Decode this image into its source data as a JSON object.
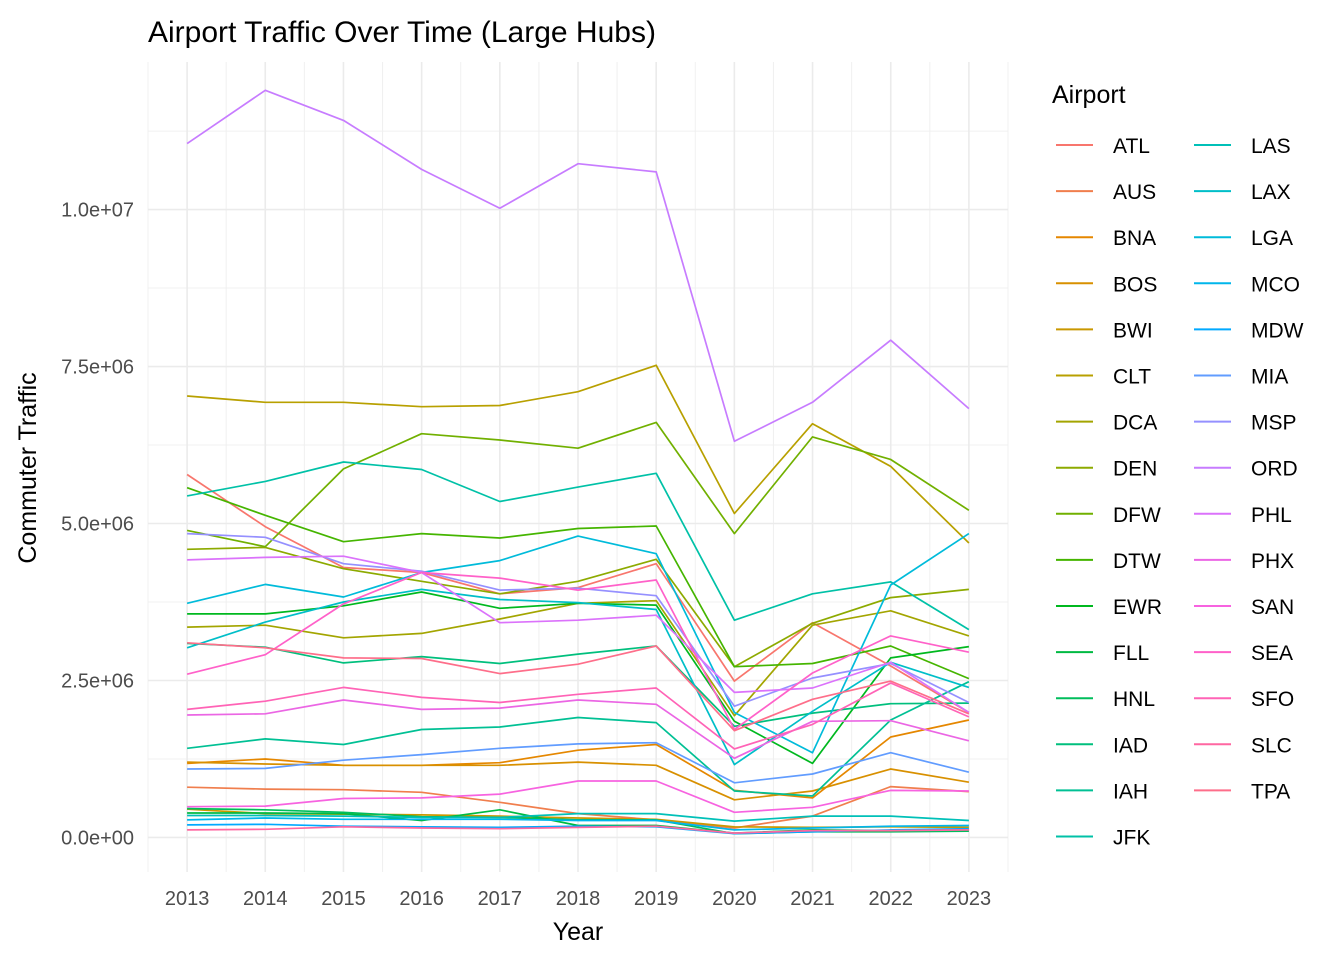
{
  "chart_data": {
    "type": "line",
    "title": "Airport Traffic Over Time (Large Hubs)",
    "xlabel": "Year",
    "ylabel": "Commuter Traffic",
    "x": [
      2013,
      2014,
      2015,
      2016,
      2017,
      2018,
      2019,
      2020,
      2021,
      2022,
      2023
    ],
    "x_tick_labels": [
      "2013",
      "2014",
      "2015",
      "2016",
      "2017",
      "2018",
      "2019",
      "2020",
      "2021",
      "2022",
      "2023"
    ],
    "y_ticks": [
      0,
      2500000,
      5000000,
      7500000,
      10000000
    ],
    "y_tick_labels": [
      "0.0e+00",
      "2.5e+06",
      "5.0e+06",
      "7.5e+06",
      "1.0e+07"
    ],
    "xlim": [
      2012.5,
      2023.5
    ],
    "ylim": [
      -550000,
      12350000
    ],
    "grid": true,
    "legend": {
      "title": "Airport",
      "placement": "right",
      "columns": 2
    },
    "series": [
      {
        "name": "ATL",
        "color": "#F8766D",
        "values": [
          5780000,
          4950000,
          4300000,
          4220000,
          3880000,
          3980000,
          4360000,
          2490000,
          3420000,
          2730000,
          1990000
        ]
      },
      {
        "name": "AUS",
        "color": "#F07E4D",
        "values": [
          800000,
          770000,
          760000,
          720000,
          560000,
          380000,
          280000,
          150000,
          340000,
          810000,
          730000
        ]
      },
      {
        "name": "BNA",
        "color": "#E58700",
        "values": [
          1180000,
          1250000,
          1150000,
          1150000,
          1190000,
          1390000,
          1480000,
          750000,
          630000,
          1600000,
          1870000
        ]
      },
      {
        "name": "BOS",
        "color": "#D89000",
        "values": [
          1200000,
          1170000,
          1150000,
          1150000,
          1150000,
          1200000,
          1150000,
          600000,
          740000,
          1090000,
          880000
        ]
      },
      {
        "name": "BWI",
        "color": "#C99800",
        "values": [
          450000,
          380000,
          370000,
          360000,
          340000,
          310000,
          290000,
          170000,
          160000,
          170000,
          160000
        ]
      },
      {
        "name": "CLT",
        "color": "#B8A000",
        "values": [
          7030000,
          6930000,
          6930000,
          6860000,
          6880000,
          7100000,
          7520000,
          5160000,
          6590000,
          5910000,
          4690000
        ]
      },
      {
        "name": "DCA",
        "color": "#A3A500",
        "values": [
          3350000,
          3380000,
          3180000,
          3250000,
          3480000,
          3730000,
          3770000,
          1940000,
          3380000,
          3610000,
          3210000
        ]
      },
      {
        "name": "DEN",
        "color": "#8DAA00",
        "values": [
          4590000,
          4620000,
          4280000,
          4080000,
          3880000,
          4080000,
          4430000,
          2720000,
          3410000,
          3820000,
          3950000
        ]
      },
      {
        "name": "DFW",
        "color": "#71B000",
        "values": [
          4890000,
          4630000,
          5870000,
          6430000,
          6330000,
          6200000,
          6610000,
          4840000,
          6380000,
          6020000,
          5210000
        ]
      },
      {
        "name": "DTW",
        "color": "#45B500",
        "values": [
          5570000,
          5130000,
          4710000,
          4840000,
          4770000,
          4920000,
          4960000,
          2720000,
          2770000,
          3050000,
          2530000
        ]
      },
      {
        "name": "EWR",
        "color": "#00B81F",
        "values": [
          3560000,
          3560000,
          3690000,
          3910000,
          3650000,
          3730000,
          3700000,
          1850000,
          1180000,
          2860000,
          3040000
        ]
      },
      {
        "name": "FLL",
        "color": "#00BA42",
        "values": [
          390000,
          390000,
          380000,
          270000,
          440000,
          190000,
          190000,
          70000,
          120000,
          110000,
          120000
        ]
      },
      {
        "name": "HNL",
        "color": "#00BD5C",
        "values": [
          460000,
          440000,
          400000,
          330000,
          320000,
          280000,
          280000,
          60000,
          90000,
          90000,
          100000
        ]
      },
      {
        "name": "IAD",
        "color": "#00BF7D",
        "values": [
          3090000,
          3030000,
          2780000,
          2880000,
          2770000,
          2920000,
          3050000,
          1770000,
          1980000,
          2130000,
          2140000
        ]
      },
      {
        "name": "IAH",
        "color": "#00C094",
        "values": [
          1420000,
          1570000,
          1480000,
          1720000,
          1760000,
          1910000,
          1830000,
          740000,
          660000,
          1870000,
          2480000
        ]
      },
      {
        "name": "JFK",
        "color": "#00C1A7",
        "values": [
          5440000,
          5670000,
          5980000,
          5860000,
          5350000,
          5580000,
          5800000,
          3460000,
          3880000,
          4070000,
          3310000
        ]
      },
      {
        "name": "LAS",
        "color": "#00C0B8",
        "values": [
          350000,
          350000,
          340000,
          320000,
          320000,
          380000,
          380000,
          260000,
          340000,
          340000,
          270000
        ]
      },
      {
        "name": "LAX",
        "color": "#00BEC8",
        "values": [
          3020000,
          3430000,
          3750000,
          3950000,
          3790000,
          3740000,
          3630000,
          1160000,
          2010000,
          2790000,
          2390000
        ]
      },
      {
        "name": "LGA",
        "color": "#00BBDA",
        "values": [
          3730000,
          4030000,
          3830000,
          4220000,
          4410000,
          4800000,
          4520000,
          1990000,
          1350000,
          4020000,
          4840000
        ]
      },
      {
        "name": "MCO",
        "color": "#00B6EB",
        "values": [
          280000,
          310000,
          290000,
          290000,
          290000,
          270000,
          270000,
          120000,
          150000,
          180000,
          190000
        ]
      },
      {
        "name": "MDW",
        "color": "#00A9FF",
        "values": [
          200000,
          210000,
          180000,
          170000,
          160000,
          180000,
          170000,
          60000,
          90000,
          120000,
          140000
        ]
      },
      {
        "name": "MIA",
        "color": "#619CFF",
        "values": [
          1090000,
          1100000,
          1230000,
          1320000,
          1420000,
          1490000,
          1510000,
          870000,
          1010000,
          1350000,
          1040000
        ]
      },
      {
        "name": "MSP",
        "color": "#9590FF",
        "values": [
          4840000,
          4780000,
          4360000,
          4240000,
          3940000,
          3970000,
          3850000,
          2090000,
          2540000,
          2770000,
          2150000
        ]
      },
      {
        "name": "ORD",
        "color": "#C77CFF",
        "values": [
          11050000,
          11900000,
          11420000,
          10640000,
          10020000,
          10730000,
          10600000,
          6310000,
          6930000,
          7920000,
          6830000
        ]
      },
      {
        "name": "PHL",
        "color": "#DB72FB",
        "values": [
          4420000,
          4460000,
          4480000,
          4220000,
          3420000,
          3460000,
          3540000,
          2310000,
          2380000,
          2790000,
          1990000
        ]
      },
      {
        "name": "PHX",
        "color": "#EB66E4",
        "values": [
          1950000,
          1970000,
          2190000,
          2040000,
          2060000,
          2190000,
          2120000,
          1260000,
          1850000,
          1860000,
          1540000
        ]
      },
      {
        "name": "SAN",
        "color": "#F763E0",
        "values": [
          490000,
          500000,
          620000,
          630000,
          690000,
          900000,
          900000,
          400000,
          480000,
          750000,
          740000
        ]
      },
      {
        "name": "SEA",
        "color": "#FF61C9",
        "values": [
          2600000,
          2910000,
          3720000,
          4220000,
          4130000,
          3940000,
          4100000,
          1720000,
          2620000,
          3210000,
          2950000
        ]
      },
      {
        "name": "SFO",
        "color": "#FF63B6",
        "values": [
          2040000,
          2170000,
          2390000,
          2230000,
          2150000,
          2280000,
          2380000,
          1410000,
          1800000,
          2460000,
          1920000
        ]
      },
      {
        "name": "SLC",
        "color": "#FF67A1",
        "values": [
          120000,
          130000,
          170000,
          150000,
          140000,
          160000,
          180000,
          70000,
          110000,
          110000,
          120000
        ]
      },
      {
        "name": "TPA",
        "color": "#FE6E8A",
        "values": [
          3100000,
          3020000,
          2860000,
          2850000,
          2610000,
          2760000,
          3050000,
          1700000,
          2200000,
          2490000,
          1970000
        ]
      }
    ]
  }
}
